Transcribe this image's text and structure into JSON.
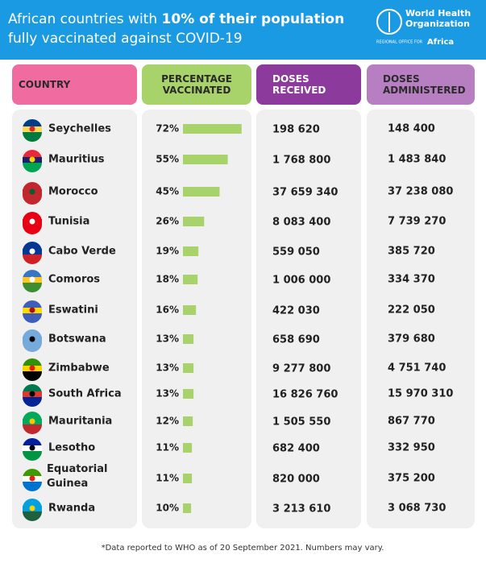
{
  "header": {
    "title_start": "African countries with ",
    "title_bold": "10% of their population",
    "title_end": "fully vaccinated against COVID-19",
    "logo_name": "World Health Organization",
    "logo_region_prefix": "REGIONAL OFFICE FOR",
    "logo_region": "Africa"
  },
  "table": {
    "columns": [
      "COUNTRY",
      "PERCENTAGE VACCINATED",
      "DOSES RECEIVED",
      "DOSES ADMINISTERED"
    ],
    "rows": [
      {
        "country": "Seychelles",
        "percentage": 72,
        "percentage_label": "72%",
        "received": "198 620",
        "administered": "148 400"
      },
      {
        "country": "Mauritius",
        "percentage": 55,
        "percentage_label": "55%",
        "received": "1 768 800",
        "administered": "1 483 840"
      },
      {
        "country": "Morocco",
        "percentage": 45,
        "percentage_label": "45%",
        "received": "37 659 340",
        "administered": "37 238 080"
      },
      {
        "country": "Tunisia",
        "percentage": 26,
        "percentage_label": "26%",
        "received": "8 083 400",
        "administered": "7 739 270"
      },
      {
        "country": "Cabo Verde",
        "percentage": 19,
        "percentage_label": "19%",
        "received": "559 050",
        "administered": "385 720"
      },
      {
        "country": "Comoros",
        "percentage": 18,
        "percentage_label": "18%",
        "received": "1 006 000",
        "administered": "334 370"
      },
      {
        "country": "Eswatini",
        "percentage": 16,
        "percentage_label": "16%",
        "received": "422 030",
        "administered": "222 050"
      },
      {
        "country": "Botswana",
        "percentage": 13,
        "percentage_label": "13%",
        "received": "658 690",
        "administered": "379 680"
      },
      {
        "country": "Zimbabwe",
        "percentage": 13,
        "percentage_label": "13%",
        "received": "9 277 800",
        "administered": "4 751 740"
      },
      {
        "country": "South Africa",
        "percentage": 13,
        "percentage_label": "13%",
        "received": "16 826 760",
        "administered": "15 970 310"
      },
      {
        "country": "Mauritania",
        "percentage": 12,
        "percentage_label": "12%",
        "received": "1 505 550",
        "administered": "867 770"
      },
      {
        "country": "Lesotho",
        "percentage": 11,
        "percentage_label": "11%",
        "received": "682 400",
        "administered": "332 950"
      },
      {
        "country": "Equatorial Guinea",
        "percentage": 11,
        "percentage_label": "11%",
        "received": "820 000",
        "administered": "375 200"
      },
      {
        "country": "Rwanda",
        "percentage": 10,
        "percentage_label": "10%",
        "received": "3 213 610",
        "administered": "3 068 730"
      }
    ]
  },
  "footnote": "*Data reported to WHO as of 20 September 2021. Numbers may vary."
}
